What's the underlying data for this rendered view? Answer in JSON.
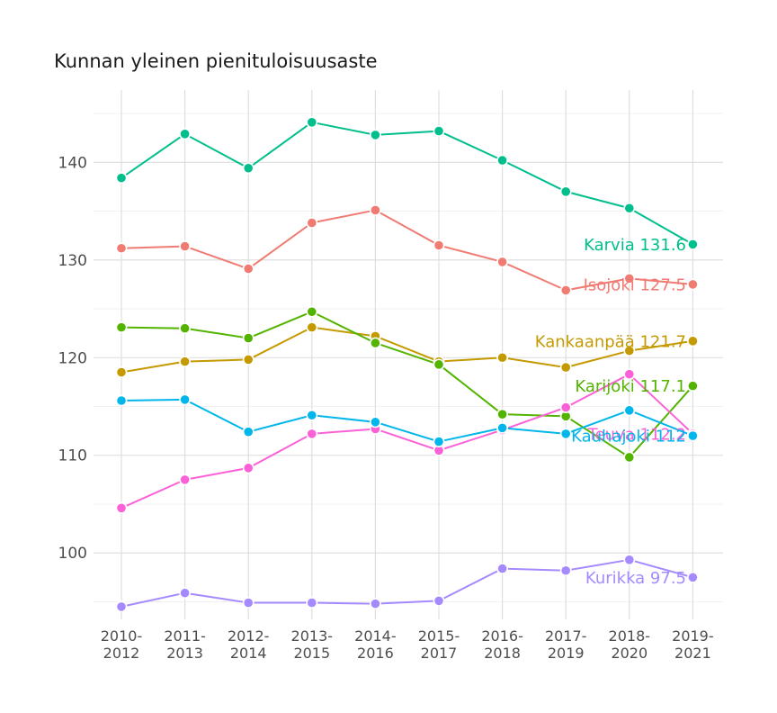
{
  "chart_data": {
    "type": "line",
    "title": "Kunnan yleinen pienituloisuusaste",
    "xlabel": "",
    "ylabel": "",
    "categories": [
      [
        "2010-",
        "2012"
      ],
      [
        "2011-",
        "2013"
      ],
      [
        "2012-",
        "2014"
      ],
      [
        "2013-",
        "2015"
      ],
      [
        "2014-",
        "2016"
      ],
      [
        "2015-",
        "2017"
      ],
      [
        "2016-",
        "2018"
      ],
      [
        "2017-",
        "2019"
      ],
      [
        "2018-",
        "2020"
      ],
      [
        "2019-",
        "2021"
      ]
    ],
    "y_ticks": [
      100,
      110,
      120,
      130,
      140
    ],
    "ylim": [
      93.2,
      147.4
    ],
    "grid": true,
    "legend": "none (direct labels at last point)",
    "series": [
      {
        "name": "Karvia",
        "color": "#00BF8C",
        "label": "Karvia 131.6",
        "values": [
          138.4,
          142.9,
          139.4,
          144.1,
          142.8,
          143.2,
          140.2,
          137.0,
          135.3,
          131.6
        ]
      },
      {
        "name": "Isojoki",
        "color": "#F07B73",
        "label": "Isojoki 127.5",
        "values": [
          131.2,
          131.4,
          129.1,
          133.8,
          135.1,
          131.5,
          129.8,
          126.9,
          128.1,
          127.5
        ]
      },
      {
        "name": "Kankaanpää",
        "color": "#C49A00",
        "label": "Kankaanpää 121.7",
        "values": [
          118.5,
          119.6,
          119.8,
          123.1,
          122.2,
          119.6,
          120.0,
          119.0,
          120.7,
          121.7
        ]
      },
      {
        "name": "Karijoki",
        "color": "#53B400",
        "label": "Karijoki 117.1",
        "values": [
          123.1,
          123.0,
          122.0,
          124.7,
          121.5,
          119.3,
          114.2,
          114.0,
          109.8,
          117.1
        ]
      },
      {
        "name": "Teuva",
        "color": "#FB61D7",
        "label": "Teuva 112.2",
        "values": [
          104.6,
          107.5,
          108.7,
          112.2,
          112.7,
          110.5,
          112.6,
          114.9,
          118.3,
          112.2
        ]
      },
      {
        "name": "Kauhajoki",
        "color": "#00B6EB",
        "label": "Kauhajoki 112",
        "values": [
          115.6,
          115.7,
          112.4,
          114.1,
          113.4,
          111.4,
          112.8,
          112.2,
          114.6,
          112.0
        ]
      },
      {
        "name": "Kurikka",
        "color": "#A58AFF",
        "label": "Kurikka 97.5",
        "values": [
          94.5,
          95.9,
          94.9,
          94.9,
          94.8,
          95.1,
          98.4,
          98.2,
          99.3,
          97.5
        ]
      }
    ]
  }
}
